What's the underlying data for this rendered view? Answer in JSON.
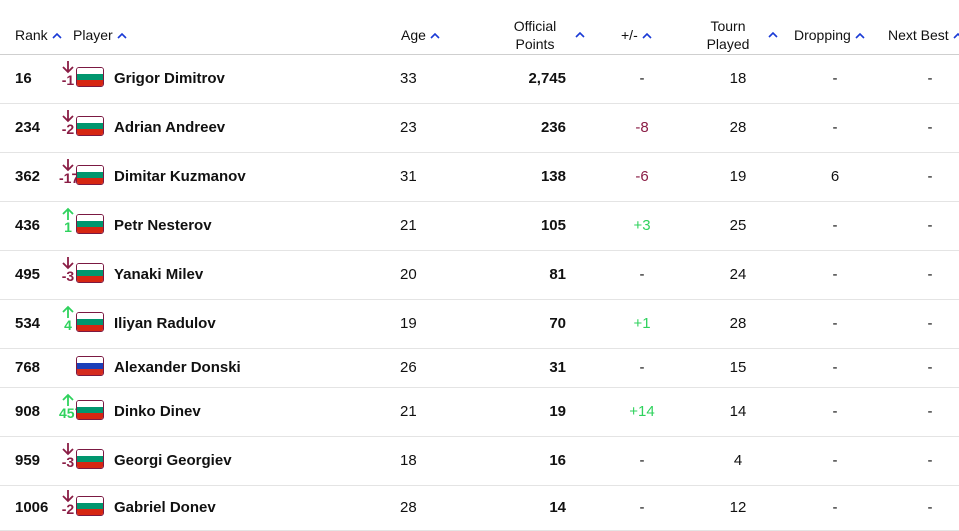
{
  "header": {
    "rank": "Rank",
    "player": "Player",
    "age": "Age",
    "points_line1": "Official",
    "points_line2": "Points",
    "plusminus": "+/-",
    "tourn_line1": "Tourn",
    "tourn_line2": "Played",
    "dropping": "Dropping",
    "next_best": "Next Best"
  },
  "colors": {
    "down": "#8a1d45",
    "up": "#2fd25d",
    "sort_arrow": "#1a3ad6"
  },
  "rows": [
    {
      "rank": "16",
      "dir": "down",
      "move": "-1",
      "flag": "bulgaria",
      "name": "Grigor Dimitrov",
      "age": "33",
      "points": "2,745",
      "pm": "-",
      "pm_type": "none",
      "played": "18",
      "dropping": "-",
      "next_best": "-"
    },
    {
      "rank": "234",
      "dir": "down",
      "move": "-2",
      "flag": "bulgaria",
      "name": "Adrian Andreev",
      "age": "23",
      "points": "236",
      "pm": "-8",
      "pm_type": "neg",
      "played": "28",
      "dropping": "-",
      "next_best": "-"
    },
    {
      "rank": "362",
      "dir": "down",
      "move": "-17",
      "flag": "bulgaria",
      "name": "Dimitar Kuzmanov",
      "age": "31",
      "points": "138",
      "pm": "-6",
      "pm_type": "neg",
      "played": "19",
      "dropping": "6",
      "next_best": "-"
    },
    {
      "rank": "436",
      "dir": "up",
      "move": "1",
      "flag": "bulgaria",
      "name": "Petr Nesterov",
      "age": "21",
      "points": "105",
      "pm": "+3",
      "pm_type": "pos",
      "played": "25",
      "dropping": "-",
      "next_best": "-"
    },
    {
      "rank": "495",
      "dir": "down",
      "move": "-3",
      "flag": "bulgaria",
      "name": "Yanaki Milev",
      "age": "20",
      "points": "81",
      "pm": "-",
      "pm_type": "none",
      "played": "24",
      "dropping": "-",
      "next_best": "-"
    },
    {
      "rank": "534",
      "dir": "up",
      "move": "4",
      "flag": "bulgaria",
      "name": "Iliyan Radulov",
      "age": "19",
      "points": "70",
      "pm": "+1",
      "pm_type": "pos",
      "played": "28",
      "dropping": "-",
      "next_best": "-"
    },
    {
      "rank": "768",
      "dir": "none",
      "move": "",
      "flag": "russia",
      "name": "Alexander Donski",
      "age": "26",
      "points": "31",
      "pm": "-",
      "pm_type": "none",
      "played": "15",
      "dropping": "-",
      "next_best": "-"
    },
    {
      "rank": "908",
      "dir": "up",
      "move": "457",
      "flag": "bulgaria",
      "name": "Dinko Dinev",
      "age": "21",
      "points": "19",
      "pm": "+14",
      "pm_type": "pos",
      "played": "14",
      "dropping": "-",
      "next_best": "-"
    },
    {
      "rank": "959",
      "dir": "down",
      "move": "-3",
      "flag": "bulgaria",
      "name": "Georgi Georgiev",
      "age": "18",
      "points": "16",
      "pm": "-",
      "pm_type": "none",
      "played": "4",
      "dropping": "-",
      "next_best": "-"
    },
    {
      "rank": "1006",
      "dir": "down",
      "move": "-2",
      "flag": "bulgaria",
      "name": "Gabriel Donev",
      "age": "28",
      "points": "14",
      "pm": "-",
      "pm_type": "none",
      "played": "12",
      "dropping": "-",
      "next_best": "-"
    }
  ]
}
